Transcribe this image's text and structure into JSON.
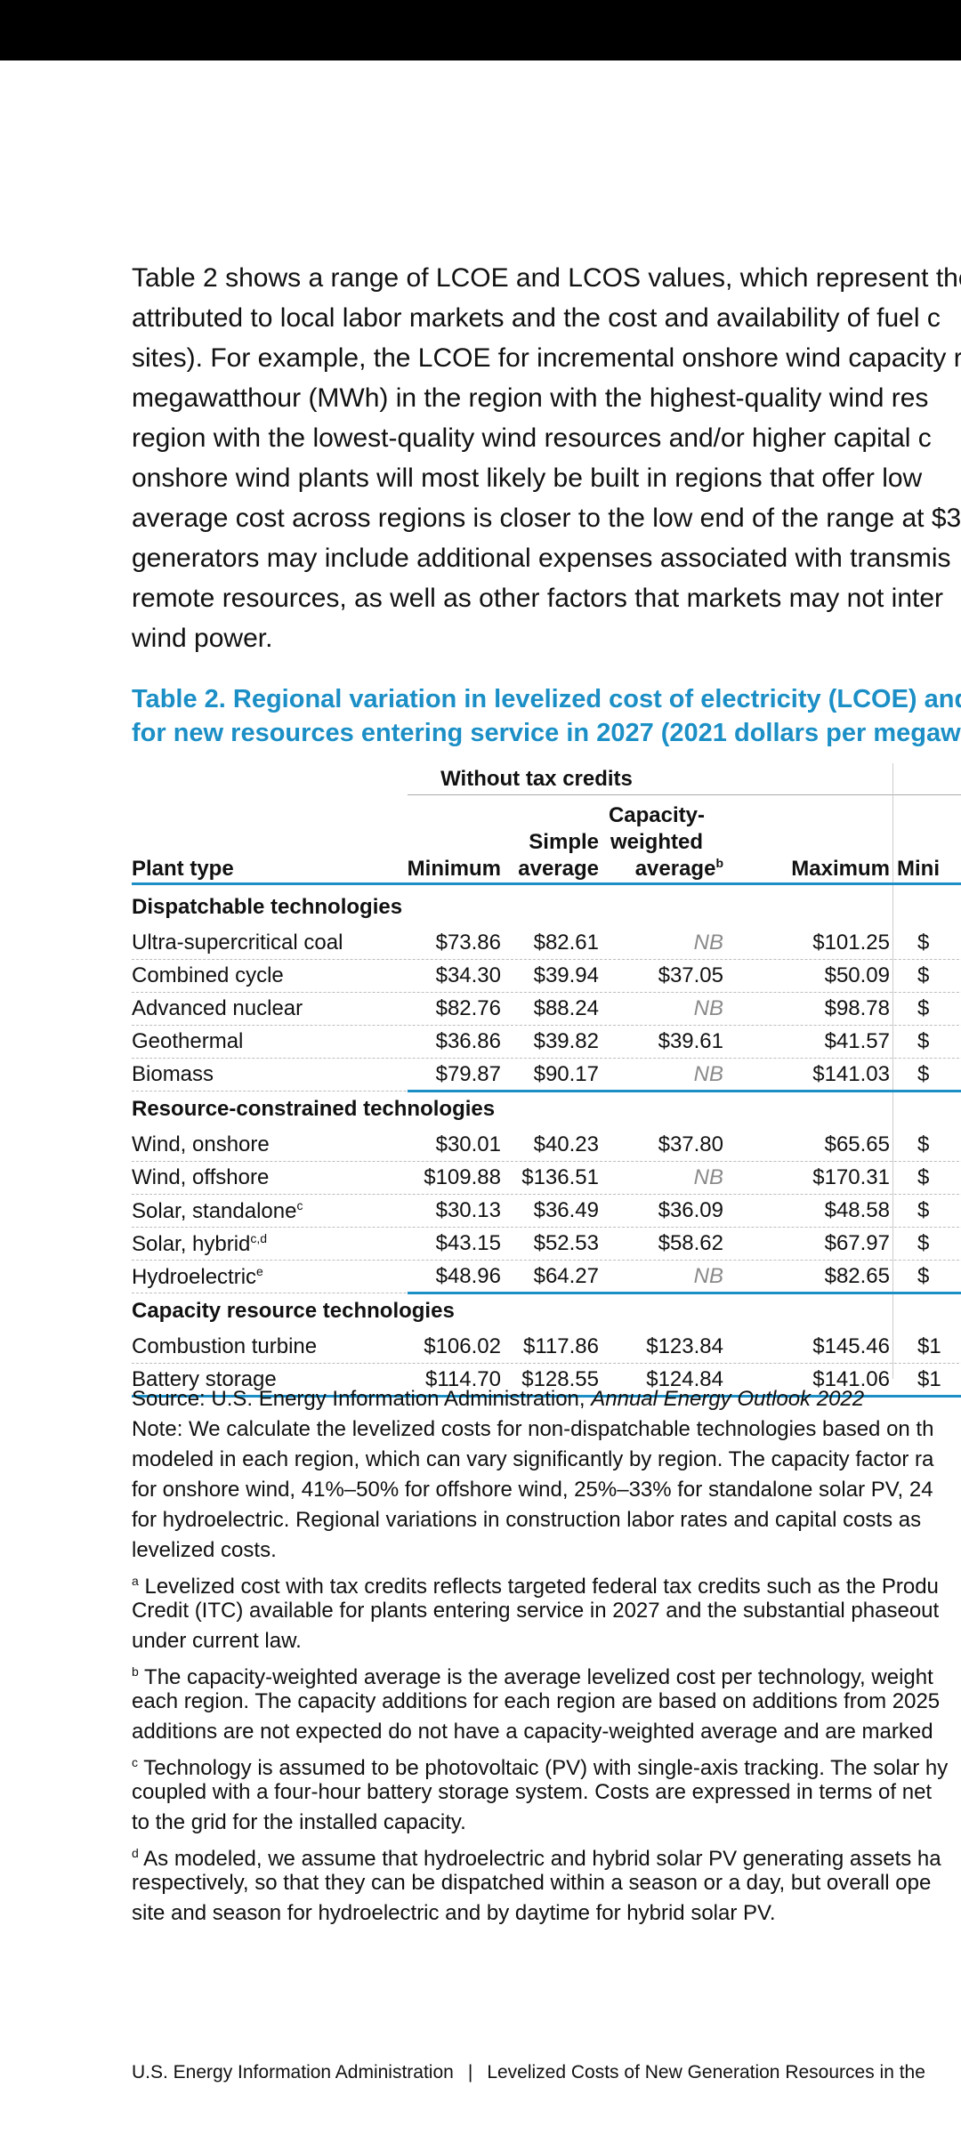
{
  "intro_lines": [
    "Table 2 shows a range of LCOE and LCOS values, which represent the",
    "attributed to local labor markets and the cost and availability of fuel c",
    "sites). For example, the LCOE for incremental onshore wind capacity r",
    "megawatthour (MWh) in the region with the highest-quality wind res",
    "region with the lowest-quality wind resources and/or higher capital c",
    "onshore wind plants will most likely be built in regions that offer low",
    "average cost across regions is closer to the low end of the range at $3",
    "generators may include additional expenses associated with transmis",
    "remote resources, as well as other factors that markets may not inter",
    "wind power."
  ],
  "caption_lines": [
    "Table 2. Regional variation in levelized cost of electricity (LCOE) and",
    "for new resources entering service in 2027 (2021 dollars per megaw"
  ],
  "table": {
    "group_header": "Without tax credits",
    "headers": {
      "plant_type": "Plant type",
      "minimum": "Minimum",
      "simple_l1": "Simple",
      "simple_l2": "average",
      "cw_l1": "Capacity-",
      "cw_l2": "weighted",
      "cw_l3": "average",
      "cw_sup": "b",
      "maximum": "Maximum",
      "next": "Mini"
    },
    "sections": [
      {
        "title": "Dispatchable technologies",
        "rows": [
          {
            "label": "Ultra-supercritical coal",
            "sup": "",
            "min": "$73.86",
            "avg": "$82.61",
            "cw": "NB",
            "max": "$101.25",
            "next": "$"
          },
          {
            "label": "Combined cycle",
            "sup": "",
            "min": "$34.30",
            "avg": "$39.94",
            "cw": "$37.05",
            "max": "$50.09",
            "next": "$"
          },
          {
            "label": "Advanced nuclear",
            "sup": "",
            "min": "$82.76",
            "avg": "$88.24",
            "cw": "NB",
            "max": "$98.78",
            "next": "$"
          },
          {
            "label": "Geothermal",
            "sup": "",
            "min": "$36.86",
            "avg": "$39.82",
            "cw": "$39.61",
            "max": "$41.57",
            "next": "$"
          },
          {
            "label": "Biomass",
            "sup": "",
            "min": "$79.87",
            "avg": "$90.17",
            "cw": "NB",
            "max": "$141.03",
            "next": "$"
          }
        ]
      },
      {
        "title": "Resource-constrained technologies",
        "rows": [
          {
            "label": "Wind, onshore",
            "sup": "",
            "min": "$30.01",
            "avg": "$40.23",
            "cw": "$37.80",
            "max": "$65.65",
            "next": "$"
          },
          {
            "label": "Wind, offshore",
            "sup": "",
            "min": "$109.88",
            "avg": "$136.51",
            "cw": "NB",
            "max": "$170.31",
            "next": "$"
          },
          {
            "label": "Solar, standalone",
            "sup": "c",
            "min": "$30.13",
            "avg": "$36.49",
            "cw": "$36.09",
            "max": "$48.58",
            "next": "$"
          },
          {
            "label": "Solar, hybrid",
            "sup": "c,d",
            "min": "$43.15",
            "avg": "$52.53",
            "cw": "$58.62",
            "max": "$67.97",
            "next": "$"
          },
          {
            "label": "Hydroelectric",
            "sup": "e",
            "min": "$48.96",
            "avg": "$64.27",
            "cw": "NB",
            "max": "$82.65",
            "next": "$"
          }
        ]
      },
      {
        "title": "Capacity resource technologies",
        "rows": [
          {
            "label": "Combustion turbine",
            "sup": "",
            "min": "$106.02",
            "avg": "$117.86",
            "cw": "$123.84",
            "max": "$145.46",
            "next": "$1"
          },
          {
            "label": "Battery storage",
            "sup": "",
            "min": "$114.70",
            "avg": "$128.55",
            "cw": "$124.84",
            "max": "$141.06",
            "next": "$1"
          }
        ]
      }
    ]
  },
  "notes": {
    "source_prefix": "Source: U.S. Energy Information Administration, ",
    "source_title": "Annual Energy Outlook 2022",
    "note_lines": [
      "Note: We calculate the levelized costs for non-dispatchable technologies based on th",
      "modeled in each region, which can vary significantly by region. The capacity factor ra",
      "for onshore wind, 41%–50% for offshore wind, 25%–33% for standalone solar PV, 24",
      "for hydroelectric. Regional variations in construction labor rates and capital costs as",
      "levelized costs."
    ],
    "a_lines": [
      " Levelized cost with tax credits reflects targeted federal tax credits such as the Produ",
      "Credit (ITC) available for plants entering service in 2027 and the substantial phaseout",
      "under current law."
    ],
    "b_lines": [
      " The capacity-weighted average is the average levelized cost per technology, weight",
      "each region. The capacity additions for each region are based on additions from 2025",
      "additions are not expected do not have a capacity-weighted average and are marked"
    ],
    "c_lines": [
      " Technology is assumed to be photovoltaic (PV) with single-axis tracking. The solar hy",
      "coupled with a four-hour battery storage system. Costs are expressed in terms of net",
      "to the grid for the installed capacity."
    ],
    "d_lines": [
      " As modeled, we assume that hydroelectric and hybrid solar PV generating assets ha",
      "respectively, so that they can be dispatched within a season or a day, but overall ope",
      "site and season for hydroelectric and by daytime for hybrid solar PV."
    ],
    "markers": {
      "a": "a",
      "b": "b",
      "c": "c",
      "d": "d"
    }
  },
  "footer": {
    "left": "U.S. Energy Information Administration",
    "separator": "|",
    "right": "Levelized Costs of New Generation Resources in the"
  }
}
